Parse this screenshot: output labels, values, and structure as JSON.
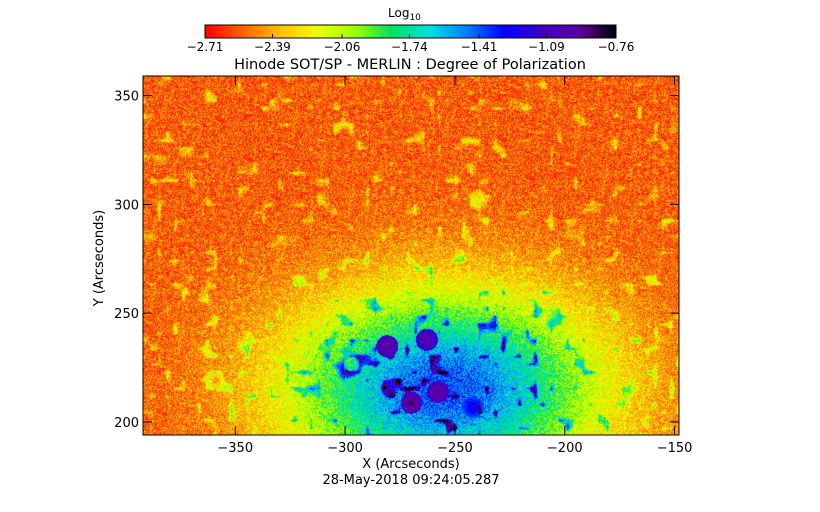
{
  "chart_data": {
    "type": "heatmap",
    "title": "Hinode SOT/SP - MERLIN : Degree of Polarization",
    "xlabel": "X (Arcseconds)",
    "ylabel": "Y (Arcseconds)",
    "timestamp": "28-May-2018 09:24:05.287",
    "xlim": [
      -392,
      -148
    ],
    "ylim": [
      194,
      359
    ],
    "x_ticks": [
      -350,
      -300,
      -250,
      -200,
      -150
    ],
    "y_ticks": [
      200,
      250,
      300,
      350
    ],
    "x_tick_labels": [
      "−350",
      "−300",
      "−250",
      "−200",
      "−150"
    ],
    "y_tick_labels": [
      "200",
      "250",
      "300",
      "350"
    ],
    "colorbar": {
      "label": "Log",
      "label_sub": "10",
      "range": [
        -2.71,
        -0.76
      ],
      "ticks": [
        -2.71,
        -2.39,
        -2.06,
        -1.74,
        -1.41,
        -1.09,
        -0.76
      ],
      "tick_labels": [
        "−2.71",
        "−2.39",
        "−2.06",
        "−1.74",
        "−1.41",
        "−1.09",
        "−0.76"
      ],
      "colormap": [
        "#ff0000",
        "#ff6000",
        "#ffc000",
        "#f0ff00",
        "#a0ff00",
        "#00e060",
        "#00e0e0",
        "#0080ff",
        "#0000ff",
        "#4000c8",
        "#6000a0",
        "#000000"
      ]
    },
    "features": [
      {
        "x": -281,
        "y": 235,
        "value": -0.9
      },
      {
        "x": -263,
        "y": 238,
        "value": -0.95
      },
      {
        "x": -270,
        "y": 209,
        "value": -0.85
      },
      {
        "x": -258,
        "y": 214,
        "value": -0.88
      },
      {
        "x": -242,
        "y": 207,
        "value": -1.2
      },
      {
        "x": -240,
        "y": 222,
        "value": -1.8
      }
    ]
  }
}
